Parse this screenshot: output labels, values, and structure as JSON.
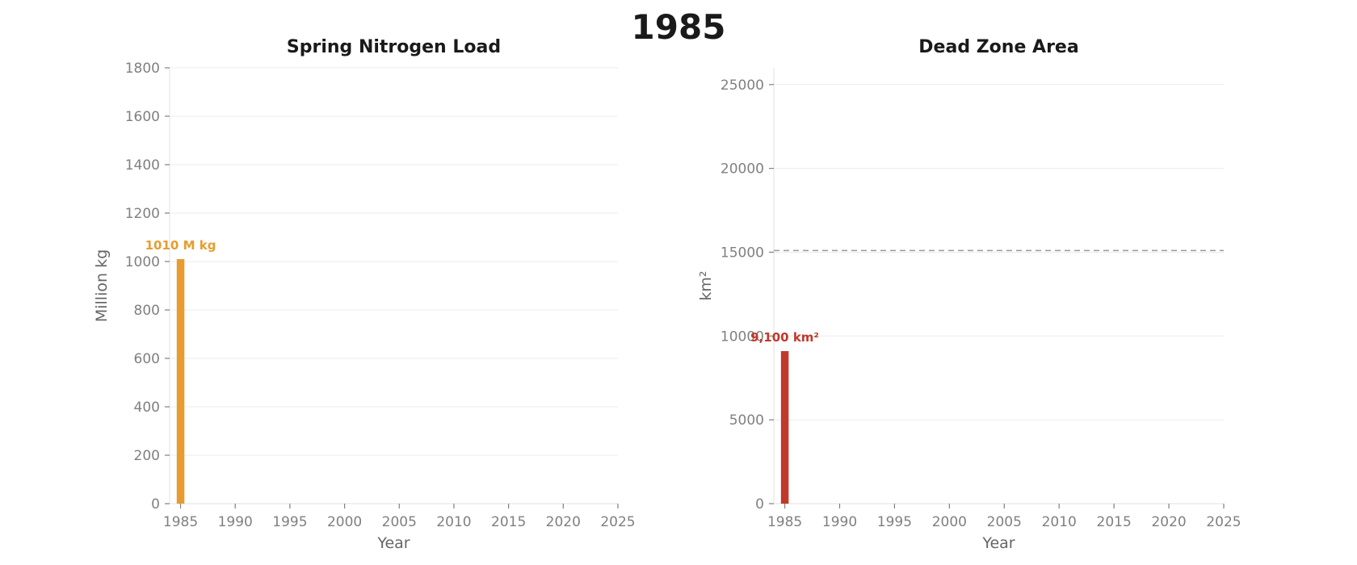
{
  "figure": {
    "title": "1985"
  },
  "chart_data": [
    {
      "type": "bar",
      "title": "Spring Nitrogen Load",
      "xlabel": "Year",
      "ylabel": "Million kg",
      "xlim": [
        1984,
        2025
      ],
      "ylim": [
        0,
        1800
      ],
      "xticks": [
        1985,
        1990,
        1995,
        2000,
        2005,
        2010,
        2015,
        2020,
        2025
      ],
      "yticks": [
        0,
        200,
        400,
        600,
        800,
        1000,
        1200,
        1400,
        1600,
        1800
      ],
      "grid": "horizontal",
      "bar_width_years": 0.7,
      "color": "#e89c2f",
      "x": [
        1985
      ],
      "values": [
        1010
      ],
      "data_labels": [
        "1010 M kg"
      ]
    },
    {
      "type": "bar",
      "title": "Dead Zone Area",
      "xlabel": "Year",
      "ylabel": "km²",
      "xlim": [
        1984,
        2025
      ],
      "ylim": [
        0,
        26000
      ],
      "xticks": [
        1985,
        1990,
        1995,
        2000,
        2005,
        2010,
        2015,
        2020,
        2025
      ],
      "yticks": [
        0,
        5000,
        10000,
        15000,
        20000,
        25000
      ],
      "grid": "horizontal",
      "bar_width_years": 0.7,
      "color": "#c0392b",
      "x": [
        1985
      ],
      "values": [
        9100
      ],
      "data_labels": [
        "9,100 km²"
      ],
      "reference_line": {
        "y": 15100,
        "style": "dashed",
        "color": "#9a9a9a"
      }
    }
  ]
}
